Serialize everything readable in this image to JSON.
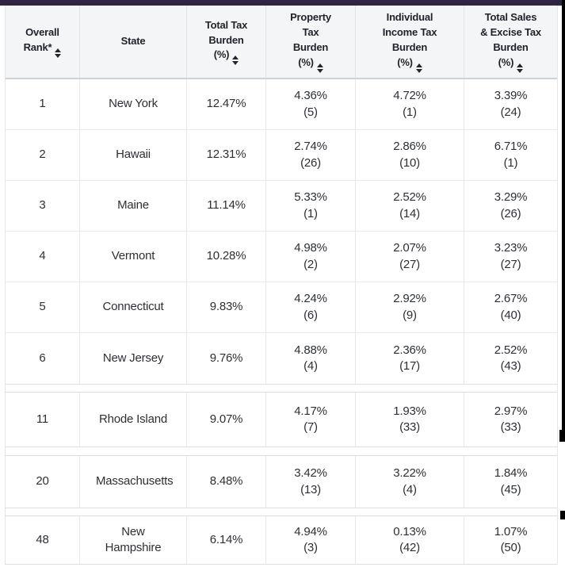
{
  "colors": {
    "accent_bar": "#2f2442",
    "header_bg": "#f3f5f6",
    "scrollbar_artifact": "#000000"
  },
  "header": {
    "columns": [
      {
        "title": "Overall\nRank*",
        "sortable": true
      },
      {
        "title": "State",
        "sortable": false
      },
      {
        "title": "Total Tax\nBurden\n(%)",
        "sortable": true
      },
      {
        "title": "Property\nTax\nBurden\n(%)",
        "sortable": true
      },
      {
        "title": "Individual\nIncome Tax\nBurden\n(%)",
        "sortable": true
      },
      {
        "title": "Total Sales\n& Excise Tax\nBurden\n(%)",
        "sortable": true
      }
    ]
  },
  "rows": [
    {
      "rank": "1",
      "state": "New York",
      "total": "12.47%",
      "prop": "4.36%",
      "prop_rank": "(5)",
      "inc": "4.72%",
      "inc_rank": "(1)",
      "sales": "3.39%",
      "sales_rank": "(24)"
    },
    {
      "rank": "2",
      "state": "Hawaii",
      "total": "12.31%",
      "prop": "2.74%",
      "prop_rank": "(26)",
      "inc": "2.86%",
      "inc_rank": "(10)",
      "sales": "6.71%",
      "sales_rank": "(1)"
    },
    {
      "rank": "3",
      "state": "Maine",
      "total": "11.14%",
      "prop": "5.33%",
      "prop_rank": "(1)",
      "inc": "2.52%",
      "inc_rank": "(14)",
      "sales": "3.29%",
      "sales_rank": "(26)"
    },
    {
      "rank": "4",
      "state": "Vermont",
      "total": "10.28%",
      "prop": "4.98%",
      "prop_rank": "(2)",
      "inc": "2.07%",
      "inc_rank": "(27)",
      "sales": "3.23%",
      "sales_rank": "(27)"
    },
    {
      "rank": "5",
      "state": "Connecticut",
      "total": "9.83%",
      "prop": "4.24%",
      "prop_rank": "(6)",
      "inc": "2.92%",
      "inc_rank": "(9)",
      "sales": "2.67%",
      "sales_rank": "(40)"
    },
    {
      "rank": "6",
      "state": "New Jersey",
      "total": "9.76%",
      "prop": "4.88%",
      "prop_rank": "(4)",
      "inc": "2.36%",
      "inc_rank": "(17)",
      "sales": "2.52%",
      "sales_rank": "(43)"
    },
    {
      "rank": "11",
      "state": "Rhode Island",
      "total": "9.07%",
      "prop": "4.17%",
      "prop_rank": "(7)",
      "inc": "1.93%",
      "inc_rank": "(33)",
      "sales": "2.97%",
      "sales_rank": "(33)"
    },
    {
      "rank": "20",
      "state": "Massachusetts",
      "total": "8.48%",
      "prop": "3.42%",
      "prop_rank": "(13)",
      "inc": "3.22%",
      "inc_rank": "(4)",
      "sales": "1.84%",
      "sales_rank": "(45)"
    },
    {
      "rank": "48",
      "state": "New Hampshire",
      "total": "6.14%",
      "prop": "4.94%",
      "prop_rank": "(3)",
      "inc": "0.13%",
      "inc_rank": "(42)",
      "sales": "1.07%",
      "sales_rank": "(50)"
    }
  ]
}
